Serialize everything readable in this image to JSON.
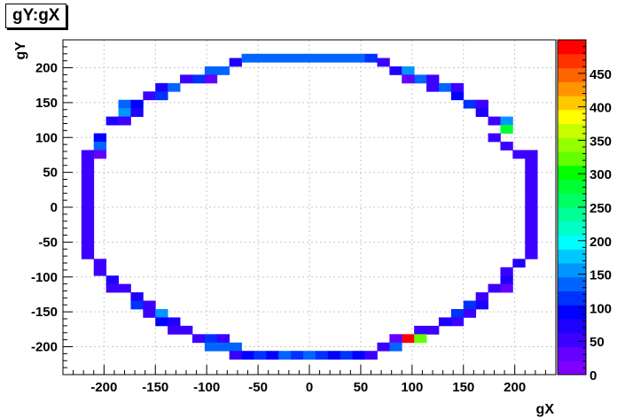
{
  "chart_data": {
    "type": "heatmap",
    "title": "gY:gX",
    "xlabel": "gX",
    "ylabel": "gY",
    "xlim": [
      -240,
      240
    ],
    "ylim": [
      -240,
      240
    ],
    "x_ticks": [
      -200,
      -150,
      -100,
      -50,
      0,
      50,
      100,
      150,
      200
    ],
    "y_ticks": [
      -200,
      -150,
      -100,
      -50,
      0,
      50,
      100,
      150,
      200
    ],
    "grid": true,
    "bin_width": 12,
    "zlim": [
      0,
      500
    ],
    "z_ticks": [
      0,
      50,
      100,
      150,
      200,
      250,
      300,
      350,
      400,
      450
    ],
    "colors": [
      "#7f00ff",
      "#6400ff",
      "#3c00ff",
      "#1e00ff",
      "#0000ff",
      "#0032ff",
      "#0064ff",
      "#0096ff",
      "#00c8ff",
      "#00ffff",
      "#00ffc8",
      "#00ff96",
      "#00ff64",
      "#00ff32",
      "#00ff00",
      "#64ff00",
      "#96ff00",
      "#c8ff00",
      "#ffff00",
      "#ffc800",
      "#ff9600",
      "#ff6400",
      "#ff3200",
      "#ff0000"
    ],
    "cells": [
      [
        -72,
        208,
        80
      ],
      [
        -60,
        214,
        130
      ],
      [
        -48,
        214,
        140
      ],
      [
        -36,
        214,
        140
      ],
      [
        -24,
        214,
        130
      ],
      [
        -12,
        214,
        140
      ],
      [
        0,
        214,
        140
      ],
      [
        12,
        214,
        130
      ],
      [
        24,
        214,
        140
      ],
      [
        36,
        214,
        130
      ],
      [
        48,
        214,
        140
      ],
      [
        60,
        214,
        110
      ],
      [
        72,
        208,
        60
      ],
      [
        -96,
        196,
        130
      ],
      [
        -84,
        196,
        140
      ],
      [
        -108,
        184,
        110
      ],
      [
        -120,
        184,
        60
      ],
      [
        -96,
        184,
        40
      ],
      [
        84,
        196,
        80
      ],
      [
        96,
        196,
        160
      ],
      [
        108,
        184,
        130
      ],
      [
        96,
        184,
        40
      ],
      [
        120,
        184,
        60
      ],
      [
        -144,
        172,
        80
      ],
      [
        -132,
        172,
        130
      ],
      [
        -156,
        160,
        60
      ],
      [
        -144,
        160,
        110
      ],
      [
        120,
        172,
        60
      ],
      [
        132,
        172,
        130
      ],
      [
        144,
        160,
        100
      ],
      [
        144,
        172,
        60
      ],
      [
        -180,
        148,
        130
      ],
      [
        -168,
        148,
        100
      ],
      [
        -180,
        136,
        160
      ],
      [
        -168,
        136,
        80
      ],
      [
        -192,
        124,
        80
      ],
      [
        -180,
        124,
        60
      ],
      [
        156,
        148,
        110
      ],
      [
        168,
        148,
        60
      ],
      [
        168,
        136,
        80
      ],
      [
        180,
        124,
        60
      ],
      [
        192,
        124,
        160
      ],
      [
        192,
        112,
        280
      ],
      [
        -204,
        100,
        100
      ],
      [
        -204,
        88,
        130
      ],
      [
        -216,
        76,
        60
      ],
      [
        -204,
        76,
        40
      ],
      [
        180,
        100,
        60
      ],
      [
        192,
        88,
        60
      ],
      [
        204,
        76,
        60
      ],
      [
        216,
        76,
        60
      ],
      [
        -216,
        64,
        60
      ],
      [
        -216,
        52,
        60
      ],
      [
        -216,
        40,
        60
      ],
      [
        -216,
        28,
        60
      ],
      [
        -216,
        16,
        60
      ],
      [
        -216,
        4,
        60
      ],
      [
        -216,
        -8,
        60
      ],
      [
        -216,
        -20,
        60
      ],
      [
        -216,
        -32,
        60
      ],
      [
        -216,
        -44,
        60
      ],
      [
        -216,
        -56,
        60
      ],
      [
        -216,
        -68,
        60
      ],
      [
        216,
        64,
        60
      ],
      [
        216,
        52,
        60
      ],
      [
        216,
        40,
        60
      ],
      [
        216,
        28,
        60
      ],
      [
        216,
        16,
        60
      ],
      [
        216,
        4,
        60
      ],
      [
        216,
        -8,
        60
      ],
      [
        216,
        -20,
        60
      ],
      [
        216,
        -32,
        60
      ],
      [
        216,
        -44,
        60
      ],
      [
        216,
        -56,
        60
      ],
      [
        216,
        -68,
        60
      ],
      [
        -204,
        -80,
        60
      ],
      [
        -204,
        -92,
        60
      ],
      [
        -192,
        -104,
        80
      ],
      [
        -192,
        -116,
        60
      ],
      [
        -180,
        -116,
        60
      ],
      [
        204,
        -80,
        80
      ],
      [
        192,
        -92,
        60
      ],
      [
        192,
        -104,
        80
      ],
      [
        180,
        -116,
        60
      ],
      [
        192,
        -116,
        40
      ],
      [
        -168,
        -128,
        80
      ],
      [
        -168,
        -140,
        110
      ],
      [
        -156,
        -140,
        60
      ],
      [
        -156,
        -152,
        60
      ],
      [
        -144,
        -152,
        160
      ],
      [
        -144,
        -164,
        100
      ],
      [
        168,
        -128,
        60
      ],
      [
        168,
        -140,
        80
      ],
      [
        156,
        -140,
        110
      ],
      [
        156,
        -152,
        60
      ],
      [
        144,
        -152,
        110
      ],
      [
        144,
        -164,
        60
      ],
      [
        -132,
        -164,
        80
      ],
      [
        -132,
        -176,
        60
      ],
      [
        -120,
        -176,
        60
      ],
      [
        -108,
        -188,
        60
      ],
      [
        -96,
        -188,
        110
      ],
      [
        -84,
        -188,
        60
      ],
      [
        132,
        -164,
        80
      ],
      [
        120,
        -176,
        60
      ],
      [
        108,
        -176,
        60
      ],
      [
        96,
        -188,
        480
      ],
      [
        108,
        -188,
        320
      ],
      [
        84,
        -188,
        40
      ],
      [
        -96,
        -200,
        130
      ],
      [
        -84,
        -200,
        140
      ],
      [
        -72,
        -200,
        130
      ],
      [
        -72,
        -212,
        60
      ],
      [
        -60,
        -212,
        100
      ],
      [
        -48,
        -212,
        110
      ],
      [
        -36,
        -212,
        100
      ],
      [
        -24,
        -212,
        130
      ],
      [
        -12,
        -212,
        110
      ],
      [
        0,
        -212,
        130
      ],
      [
        12,
        -212,
        110
      ],
      [
        24,
        -212,
        100
      ],
      [
        36,
        -212,
        110
      ],
      [
        48,
        -212,
        100
      ],
      [
        60,
        -212,
        60
      ],
      [
        72,
        -200,
        60
      ],
      [
        84,
        -200,
        130
      ]
    ]
  }
}
